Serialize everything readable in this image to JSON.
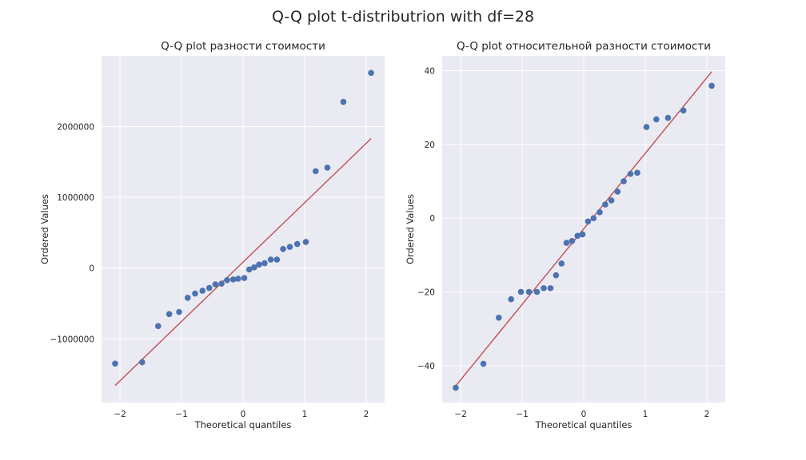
{
  "suptitle": "Q-Q plot t-distributrion with df=28",
  "colors": {
    "axes_bg": "#eaeaf2",
    "grid": "#ffffff",
    "points": "#4c72b0",
    "fit_line": "#c44e52"
  },
  "chart_data": [
    {
      "type": "scatter",
      "title": "Q-Q plot разности стоимости",
      "xlabel": "Theoretical quantiles",
      "ylabel": "Ordered Values",
      "xlim": [
        -2.3,
        2.3
      ],
      "ylim": [
        -1900000,
        3000000
      ],
      "xticks": [
        -2,
        -1,
        0,
        1,
        2
      ],
      "xtick_labels": [
        "−2",
        "−1",
        "0",
        "1",
        "2"
      ],
      "yticks": [
        -1000000,
        0,
        1000000,
        2000000
      ],
      "ytick_labels": [
        "−1000000",
        "0",
        "1000000",
        "2000000"
      ],
      "grid": true,
      "points": {
        "x": [
          -2.08,
          -1.64,
          -1.38,
          -1.2,
          -1.04,
          -0.9,
          -0.78,
          -0.66,
          -0.55,
          -0.45,
          -0.35,
          -0.26,
          -0.16,
          -0.08,
          0.02,
          0.1,
          0.18,
          0.26,
          0.35,
          0.45,
          0.55,
          0.65,
          0.76,
          0.88,
          1.02,
          1.18,
          1.37,
          1.63,
          2.08
        ],
        "y": [
          -1350000,
          -1330000,
          -820000,
          -650000,
          -620000,
          -420000,
          -360000,
          -320000,
          -280000,
          -230000,
          -220000,
          -170000,
          -160000,
          -150000,
          -140000,
          -20000,
          10000,
          50000,
          70000,
          120000,
          120000,
          270000,
          300000,
          340000,
          370000,
          1370000,
          1420000,
          2350000,
          2760000
        ]
      },
      "fit_line": {
        "x": [
          -2.08,
          2.08
        ],
        "y": [
          -1660000,
          1830000
        ]
      }
    },
    {
      "type": "scatter",
      "title": "Q-Q plot относительной разности стоимости",
      "xlabel": "Theoretical quantiles",
      "ylabel": "Ordered Values",
      "xlim": [
        -2.3,
        2.3
      ],
      "ylim": [
        -50,
        44
      ],
      "xticks": [
        -2,
        -1,
        0,
        1,
        2
      ],
      "xtick_labels": [
        "−2",
        "−1",
        "0",
        "1",
        "2"
      ],
      "yticks": [
        -40,
        -20,
        0,
        20,
        40
      ],
      "ytick_labels": [
        "−40",
        "−20",
        "0",
        "20",
        "40"
      ],
      "grid": true,
      "points": {
        "x": [
          -2.08,
          -1.63,
          -1.38,
          -1.18,
          -1.02,
          -0.89,
          -0.76,
          -0.65,
          -0.54,
          -0.45,
          -0.36,
          -0.28,
          -0.19,
          -0.1,
          -0.02,
          0.07,
          0.16,
          0.26,
          0.35,
          0.45,
          0.55,
          0.65,
          0.76,
          0.87,
          1.02,
          1.18,
          1.37,
          1.62,
          2.08
        ],
        "y": [
          -46,
          -39.5,
          -27,
          -22,
          -20,
          -20,
          -20,
          -19,
          -19,
          -15.5,
          -12.3,
          -6.7,
          -6.2,
          -4.8,
          -4.4,
          -0.9,
          0,
          1.6,
          3.7,
          4.8,
          7.2,
          10,
          12,
          12.3,
          24.7,
          26.8,
          27.2,
          29.2,
          35.9
        ]
      },
      "fit_line": {
        "x": [
          -2.08,
          2.08
        ],
        "y": [
          -45.5,
          39.7
        ]
      }
    }
  ]
}
